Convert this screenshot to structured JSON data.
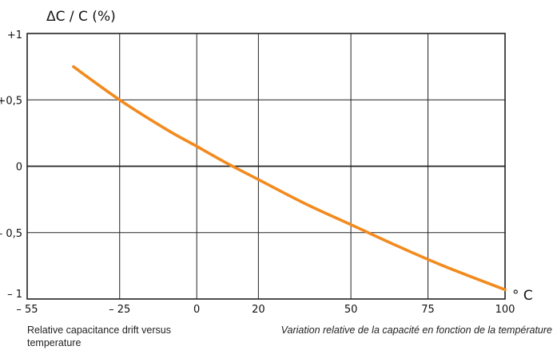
{
  "chart_data": {
    "type": "line",
    "ylabel": "ΔC / C (%)",
    "xlabel": "° C",
    "x_ticks": [
      {
        "value": -55,
        "label": "– 55"
      },
      {
        "value": -25,
        "label": "– 25"
      },
      {
        "value": 0,
        "label": "0"
      },
      {
        "value": 20,
        "label": "20"
      },
      {
        "value": 50,
        "label": "50"
      },
      {
        "value": 75,
        "label": "75"
      },
      {
        "value": 100,
        "label": "100"
      }
    ],
    "y_ticks": [
      {
        "value": 1,
        "label": "+1"
      },
      {
        "value": 0.5,
        "label": "+0,5"
      },
      {
        "value": 0,
        "label": "0"
      },
      {
        "value": -0.5,
        "label": "– 0,5"
      },
      {
        "value": -1,
        "label": "– 1"
      }
    ],
    "xlim": [
      -55,
      100
    ],
    "ylim": [
      -1,
      1
    ],
    "grid": true,
    "series": [
      {
        "color": "#f28a1e",
        "x": [
          -40,
          -25,
          -10,
          0,
          10,
          20,
          35,
          50,
          65,
          80,
          100
        ],
        "y": [
          0.75,
          0.5,
          0.28,
          0.15,
          0.02,
          -0.1,
          -0.28,
          -0.44,
          -0.6,
          -0.75,
          -0.93
        ]
      }
    ]
  },
  "captions": {
    "left": "Relative capacitance drift versus temperature",
    "right": "Variation relative de la capacité en fonction de la température"
  },
  "colors": {
    "curve": "#f28a1e",
    "grid": "#222222"
  }
}
